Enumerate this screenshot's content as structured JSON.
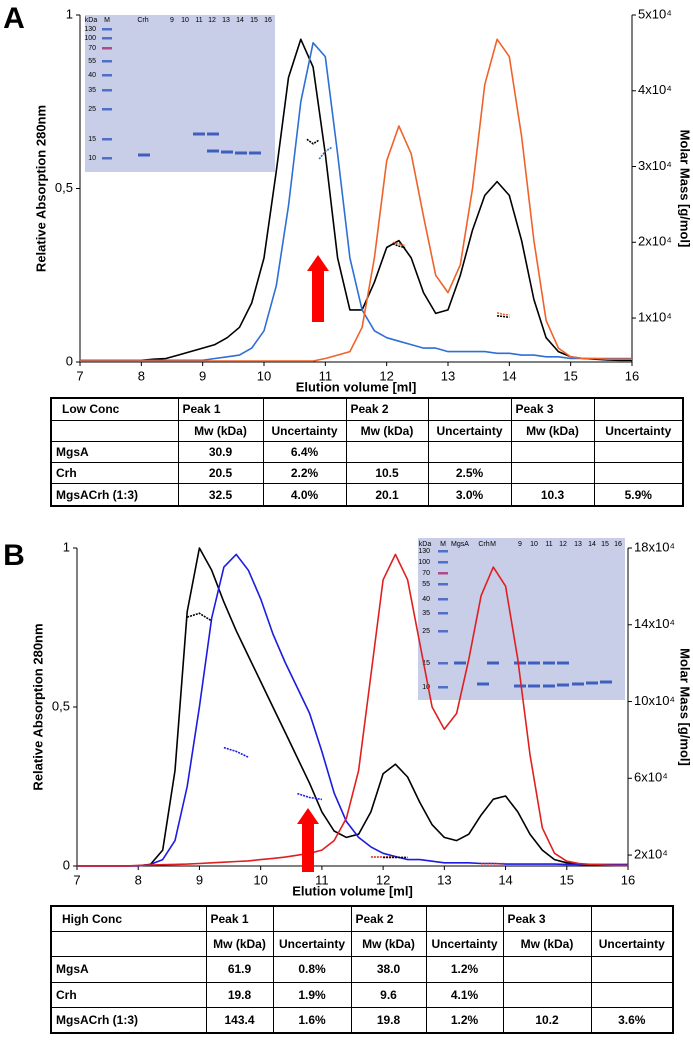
{
  "chart_data": [
    {
      "type": "line",
      "panel_label": "A",
      "xlabel": "Elution volume [ml]",
      "ylabel": "Relative Absorption 280nm",
      "y2label": "Molar Mass [g/mol]",
      "x": [
        7,
        7.2,
        7.4,
        7.6,
        7.8,
        8,
        8.2,
        8.4,
        8.6,
        8.8,
        9,
        9.2,
        9.4,
        9.6,
        9.8,
        10,
        10.2,
        10.4,
        10.6,
        10.8,
        11,
        11.2,
        11.4,
        11.6,
        11.8,
        12,
        12.2,
        12.4,
        12.6,
        12.8,
        13,
        13.2,
        13.4,
        13.6,
        13.8,
        14,
        14.2,
        14.4,
        14.6,
        14.8,
        15,
        15.2,
        15.4,
        15.6,
        15.8,
        16
      ],
      "xlim": [
        7,
        16
      ],
      "xticks": [
        7,
        8,
        9,
        10,
        11,
        12,
        13,
        14,
        15,
        16
      ],
      "ylim": [
        0,
        1
      ],
      "yticks": [
        0,
        {
          "value": 0.5,
          "label": "0,5"
        },
        1
      ],
      "y2lim": [
        4200,
        50000
      ],
      "y2ticks": [
        {
          "value": 10000,
          "label": "1x10⁴"
        },
        {
          "value": 20000,
          "label": "2x10⁴"
        },
        {
          "value": 30000,
          "label": "3x10⁴"
        },
        {
          "value": 40000,
          "label": "4x10⁴"
        },
        {
          "value": 50000,
          "label": "5x10⁴"
        }
      ],
      "series": [
        {
          "color": "#000000",
          "values": [
            0.005,
            0.005,
            0.005,
            0.005,
            0.005,
            0.005,
            0.008,
            0.01,
            0.02,
            0.03,
            0.04,
            0.05,
            0.07,
            0.1,
            0.17,
            0.3,
            0.55,
            0.82,
            0.93,
            0.85,
            0.6,
            0.3,
            0.15,
            0.15,
            0.23,
            0.33,
            0.35,
            0.3,
            0.2,
            0.14,
            0.15,
            0.25,
            0.38,
            0.48,
            0.52,
            0.48,
            0.35,
            0.18,
            0.07,
            0.03,
            0.015,
            0.01,
            0.008,
            0.006,
            0.005,
            0.005
          ]
        },
        {
          "color": "#2e6fd6",
          "values": [
            0.005,
            0.005,
            0.005,
            0.005,
            0.005,
            0.005,
            0.005,
            0.005,
            0.005,
            0.005,
            0.005,
            0.01,
            0.015,
            0.02,
            0.04,
            0.09,
            0.22,
            0.45,
            0.75,
            0.92,
            0.88,
            0.6,
            0.3,
            0.15,
            0.09,
            0.07,
            0.06,
            0.05,
            0.04,
            0.04,
            0.03,
            0.03,
            0.03,
            0.03,
            0.025,
            0.025,
            0.02,
            0.02,
            0.015,
            0.015,
            0.01,
            0.01,
            0.01,
            0.01,
            0.01,
            0.01
          ]
        },
        {
          "color": "#f0622a",
          "values": [
            0.003,
            0.003,
            0.003,
            0.003,
            0.003,
            0.003,
            0.003,
            0.003,
            0.003,
            0.003,
            0.003,
            0.003,
            0.003,
            0.003,
            0.003,
            0.003,
            0.003,
            0.003,
            0.003,
            0.003,
            0.01,
            0.02,
            0.03,
            0.1,
            0.3,
            0.58,
            0.68,
            0.6,
            0.42,
            0.25,
            0.2,
            0.28,
            0.5,
            0.8,
            0.93,
            0.88,
            0.65,
            0.35,
            0.12,
            0.04,
            0.015,
            0.01,
            0.01,
            0.008,
            0.008,
            0.008
          ]
        }
      ],
      "mass_series": [
        {
          "color": "#000000",
          "axis": "y2",
          "x": [
            10.7,
            10.8,
            10.9
          ],
          "values": [
            33600,
            33000,
            33500
          ]
        },
        {
          "color": "#2e6fd6",
          "axis": "y2",
          "x": [
            10.9,
            11.0,
            11.1
          ],
          "values": [
            31000,
            32000,
            32500
          ]
        },
        {
          "color": "#f0622a",
          "axis": "y2",
          "x": [
            12.1,
            12.2,
            12.3
          ],
          "values": [
            20000,
            19800,
            19600
          ]
        },
        {
          "color": "#000000",
          "axis": "y2",
          "x": [
            12.1,
            12.2,
            12.3
          ],
          "values": [
            19800,
            19500,
            19300
          ]
        },
        {
          "color": "#f0622a",
          "axis": "y2",
          "x": [
            13.8,
            13.9,
            14.0
          ],
          "values": [
            10700,
            10500,
            10400
          ]
        },
        {
          "color": "#000000",
          "axis": "y2",
          "x": [
            13.8,
            13.9,
            14.0
          ],
          "values": [
            10300,
            10200,
            10100
          ]
        }
      ],
      "gel": {
        "unit": "kDa",
        "lanes": [
          "M",
          "Crh",
          "9",
          "10",
          "11",
          "12",
          "13",
          "14",
          "15",
          "16"
        ],
        "markers": [
          "130",
          "100",
          "70",
          "55",
          "40",
          "35",
          "25",
          "15",
          "10"
        ]
      }
    },
    {
      "type": "line",
      "panel_label": "B",
      "xlabel": "Elution volume [ml]",
      "ylabel": "Relative Absorption 280nm",
      "y2label": "Molar Mass [g/mol]",
      "x": [
        7,
        7.2,
        7.4,
        7.6,
        7.8,
        8,
        8.2,
        8.4,
        8.6,
        8.8,
        9,
        9.2,
        9.4,
        9.6,
        9.8,
        10,
        10.2,
        10.4,
        10.6,
        10.8,
        11,
        11.2,
        11.4,
        11.6,
        11.8,
        12,
        12.2,
        12.4,
        12.6,
        12.8,
        13,
        13.2,
        13.4,
        13.6,
        13.8,
        14,
        14.2,
        14.4,
        14.6,
        14.8,
        15,
        15.2,
        15.4,
        15.6,
        15.8,
        16
      ],
      "xlim": [
        7,
        16
      ],
      "xticks": [
        7,
        8,
        9,
        10,
        11,
        12,
        13,
        14,
        15,
        16
      ],
      "ylim": [
        0,
        1
      ],
      "yticks": [
        0,
        {
          "value": 0.5,
          "label": "0,5"
        },
        1
      ],
      "y2lim": [
        14300,
        180000
      ],
      "y2ticks": [
        {
          "value": 20000,
          "label": "2x10⁴"
        },
        {
          "value": 60000,
          "label": "6x10⁴"
        },
        {
          "value": 100000,
          "label": "10x10⁴"
        },
        {
          "value": 140000,
          "label": "14x10⁴"
        },
        {
          "value": 180000,
          "label": "18x10⁴"
        }
      ],
      "series": [
        {
          "color": "#000000",
          "values": [
            0,
            0,
            0,
            0,
            0,
            0.001,
            0.005,
            0.05,
            0.3,
            0.8,
            1.0,
            0.93,
            0.83,
            0.74,
            0.66,
            0.58,
            0.5,
            0.42,
            0.34,
            0.26,
            0.17,
            0.11,
            0.09,
            0.1,
            0.17,
            0.29,
            0.32,
            0.28,
            0.2,
            0.13,
            0.09,
            0.08,
            0.1,
            0.16,
            0.21,
            0.22,
            0.17,
            0.1,
            0.05,
            0.02,
            0.01,
            0.005,
            0.003,
            0.002,
            0.001,
            0.001
          ]
        },
        {
          "color": "#1c1ce0",
          "values": [
            0,
            0,
            0,
            0,
            0,
            0,
            0.005,
            0.02,
            0.08,
            0.25,
            0.5,
            0.78,
            0.94,
            0.98,
            0.93,
            0.84,
            0.73,
            0.64,
            0.56,
            0.48,
            0.36,
            0.23,
            0.14,
            0.09,
            0.06,
            0.04,
            0.03,
            0.02,
            0.02,
            0.015,
            0.01,
            0.01,
            0.01,
            0.008,
            0.008,
            0.006,
            0.006,
            0.006,
            0.006,
            0.006,
            0.005,
            0.005,
            0.005,
            0.005,
            0.005,
            0.005
          ]
        },
        {
          "color": "#e02020",
          "values": [
            0,
            0,
            0,
            0,
            0,
            0.002,
            0.003,
            0.004,
            0.005,
            0.006,
            0.008,
            0.01,
            0.012,
            0.014,
            0.016,
            0.02,
            0.024,
            0.028,
            0.034,
            0.04,
            0.05,
            0.08,
            0.15,
            0.3,
            0.6,
            0.9,
            0.98,
            0.9,
            0.7,
            0.5,
            0.43,
            0.48,
            0.65,
            0.85,
            0.94,
            0.88,
            0.65,
            0.35,
            0.12,
            0.04,
            0.015,
            0.008,
            0.005,
            0.003,
            0.002,
            0.002
          ]
        }
      ],
      "mass_series": [
        {
          "color": "#000000",
          "axis": "y2",
          "x": [
            8.8,
            9.0,
            9.2
          ],
          "values": [
            144000,
            146000,
            142000
          ]
        },
        {
          "color": "#1c1ce0",
          "axis": "y2",
          "x": [
            9.4,
            9.6,
            9.8
          ],
          "values": [
            76000,
            74000,
            71000
          ]
        },
        {
          "color": "#1c1ce0",
          "axis": "y2",
          "x": [
            10.6,
            10.8,
            11.0
          ],
          "values": [
            52000,
            50000,
            49000
          ]
        },
        {
          "color": "#e02020",
          "axis": "y2",
          "x": [
            11.8,
            12.0,
            12.2
          ],
          "values": [
            19000,
            19000,
            19000
          ]
        },
        {
          "color": "#000000",
          "axis": "y2",
          "x": [
            12.0,
            12.2,
            12.4
          ],
          "values": [
            18800,
            18800,
            18800
          ]
        },
        {
          "color": "#e02020",
          "axis": "y2",
          "x": [
            13.6,
            13.8,
            14.0
          ],
          "values": [
            15500,
            15500,
            15500
          ]
        }
      ],
      "gel": {
        "unit": "kDa",
        "lanes": [
          "M",
          "MgsA",
          "Crh",
          "M",
          "9",
          "10",
          "11",
          "12",
          "13",
          "14",
          "15",
          "16"
        ],
        "markers": [
          "130",
          "100",
          "70",
          "55",
          "40",
          "35",
          "25",
          "15",
          "10"
        ]
      }
    }
  ],
  "tables": [
    {
      "corner": "Low Conc",
      "peaks": [
        "Peak 1",
        "Peak 2",
        "Peak 3"
      ],
      "subheaders": [
        "Mw (kDa)",
        "Uncertainty",
        "Mw (kDa)",
        "Uncertainty",
        "Mw (kDa)",
        "Uncertainty"
      ],
      "rows": [
        {
          "label": "MgsA",
          "cells": [
            "30.9",
            "6.4%"
          ]
        },
        {
          "label": "Crh",
          "cells": [
            "20.5",
            "2.2%",
            "10.5",
            "2.5%"
          ]
        },
        {
          "label": "MgsACrh (1:3)",
          "cells": [
            "32.5",
            "4.0%",
            "20.1",
            "3.0%",
            "10.3",
            "5.9%"
          ]
        }
      ]
    },
    {
      "corner": "High Conc",
      "peaks": [
        "Peak 1",
        "Peak 2",
        "Peak 3"
      ],
      "subheaders": [
        "Mw (kDa)",
        "Uncertainty",
        "Mw (kDa)",
        "Uncertainty",
        "Mw (kDa)",
        "Uncertainty"
      ],
      "rows": [
        {
          "label": "MgsA",
          "cells": [
            "61.9",
            "0.8%",
            "38.0",
            "1.2%"
          ]
        },
        {
          "label": "Crh",
          "cells": [
            "19.8",
            "1.9%",
            "9.6",
            "4.1%"
          ]
        },
        {
          "label": "MgsACrh (1:3)",
          "cells": [
            "143.4",
            "1.6%",
            "19.8",
            "1.2%",
            "10.2",
            "3.6%"
          ]
        }
      ]
    }
  ]
}
